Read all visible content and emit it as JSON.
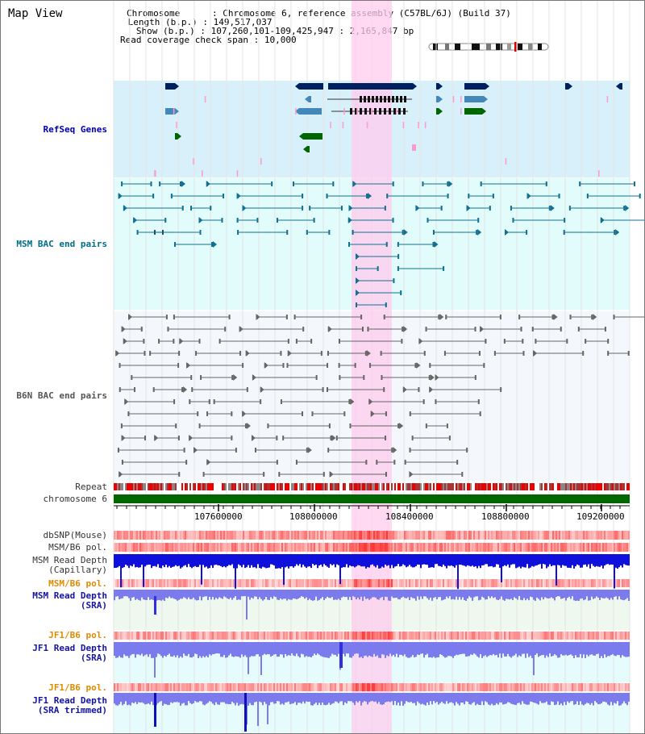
{
  "page": {
    "title": "Map View"
  },
  "info": {
    "chromosome_label": "Chromosome",
    "chromosome_value": "Chromosome 6, reference assembly (C57BL/6J) (Build 37)",
    "length_label": "Length (b.p.)",
    "length_value": "149,517,037",
    "show_label": "Show (b.p.)",
    "show_value": "107,260,101-109,425,947 : 2,165,847 bp",
    "coverage_label": "Read coverage check span",
    "coverage_value": "10,000"
  },
  "tracks": {
    "refseq": "RefSeq Genes",
    "msm_bac": "MSM BAC end pairs",
    "b6n_bac": "B6N BAC end pairs",
    "repeat": "Repeat",
    "chromosome": "chromosome 6",
    "dbsnp": "dbSNP(Mouse)",
    "msm_b6_pol": "MSM/B6 pol.",
    "msm_depth_cap_1": "MSM Read Depth",
    "msm_depth_cap_2": "(Capillary)",
    "msm_b6_pol_2": "MSM/B6 pol.",
    "msm_depth_sra_1": "MSM Read Depth",
    "msm_depth_sra_2": "(SRA)",
    "jf1_b6_pol": "JF1/B6 pol.",
    "jf1_depth_sra_1": "JF1 Read Depth",
    "jf1_depth_sra_2": "(SRA)",
    "jf1_b6_pol_2": "JF1/B6 pol.",
    "jf1_depth_trim_1": "JF1 Read Depth",
    "jf1_depth_trim_2": "(SRA trimmed)"
  },
  "axis": {
    "ticks": [
      "107600000",
      "108000000",
      "108400000",
      "108800000",
      "109200000"
    ]
  },
  "colors": {
    "highlight": "#ffccee",
    "refseq_bg": "#d8f0fa",
    "bac_bg": "#e2fbfb",
    "b6n_bg": "#f4f8fc",
    "gene_dark": "#002060",
    "gene_mid": "#4488bb",
    "gene_green": "#006600",
    "depth_blue": "#1010dd",
    "depth_light": "#7b7bee"
  }
}
